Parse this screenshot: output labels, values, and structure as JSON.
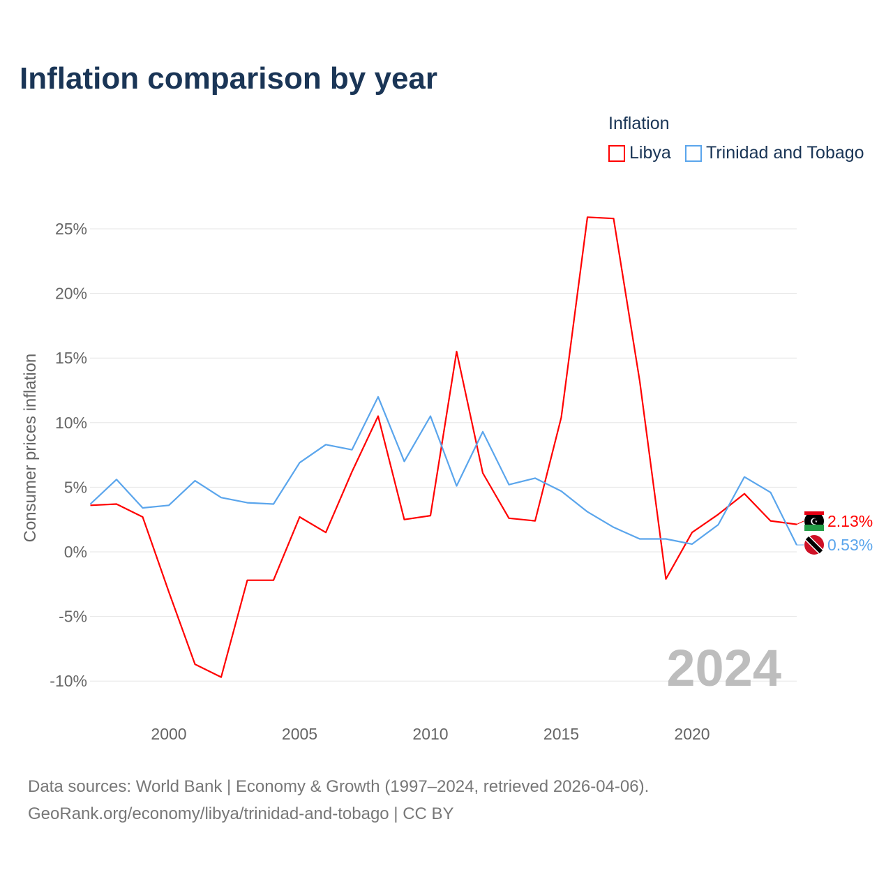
{
  "title": "Inflation comparison by year",
  "legend": {
    "title": "Inflation",
    "items": [
      {
        "label": "Libya",
        "color": "#ff0000"
      },
      {
        "label": "Trinidad and Tobago",
        "color": "#5aa5ec"
      }
    ]
  },
  "watermark_year": "2024",
  "source": {
    "line1": "Data sources: World Bank | Economy & Growth (1997–2024, retrieved 2026-04-06).",
    "line2": "GeoRank.org/economy/libya/trinidad-and-tobago | CC BY"
  },
  "chart_data": {
    "type": "line",
    "ylabel": "Consumer prices inflation",
    "xlabel": "",
    "ylim": [
      -11,
      27
    ],
    "xlim": [
      1997,
      2024
    ],
    "yticks": [
      -10,
      -5,
      0,
      5,
      10,
      15,
      20,
      25
    ],
    "ytick_labels": [
      "-10%",
      "-5%",
      "0%",
      "5%",
      "10%",
      "15%",
      "20%",
      "25%"
    ],
    "xticks": [
      2000,
      2005,
      2010,
      2015,
      2020
    ],
    "xtick_labels": [
      "2000",
      "2005",
      "2010",
      "2015",
      "2020"
    ],
    "grid": true,
    "legend_position": "top-right",
    "x": [
      1997,
      1998,
      1999,
      2000,
      2001,
      2002,
      2003,
      2004,
      2005,
      2006,
      2007,
      2008,
      2009,
      2010,
      2011,
      2012,
      2013,
      2014,
      2015,
      2016,
      2017,
      2018,
      2019,
      2020,
      2021,
      2022,
      2023,
      2024
    ],
    "series": [
      {
        "name": "Libya",
        "color": "#ff0000",
        "end_label": "2.13%",
        "values": [
          3.6,
          3.7,
          2.7,
          -3.1,
          -8.7,
          -9.7,
          -2.2,
          -2.2,
          2.7,
          1.5,
          6.2,
          10.5,
          2.5,
          2.8,
          15.5,
          6.1,
          2.6,
          2.4,
          10.4,
          25.9,
          25.8,
          13.2,
          -2.1,
          1.5,
          2.9,
          4.5,
          2.4,
          2.13
        ]
      },
      {
        "name": "Trinidad and Tobago",
        "color": "#5aa5ec",
        "end_label": "0.53%",
        "values": [
          3.7,
          5.6,
          3.4,
          3.6,
          5.5,
          4.2,
          3.8,
          3.7,
          6.9,
          8.3,
          7.9,
          12.0,
          7.0,
          10.5,
          5.1,
          9.3,
          5.2,
          5.7,
          4.7,
          3.1,
          1.9,
          1.0,
          1.0,
          0.6,
          2.1,
          5.8,
          4.6,
          0.53
        ]
      }
    ]
  }
}
